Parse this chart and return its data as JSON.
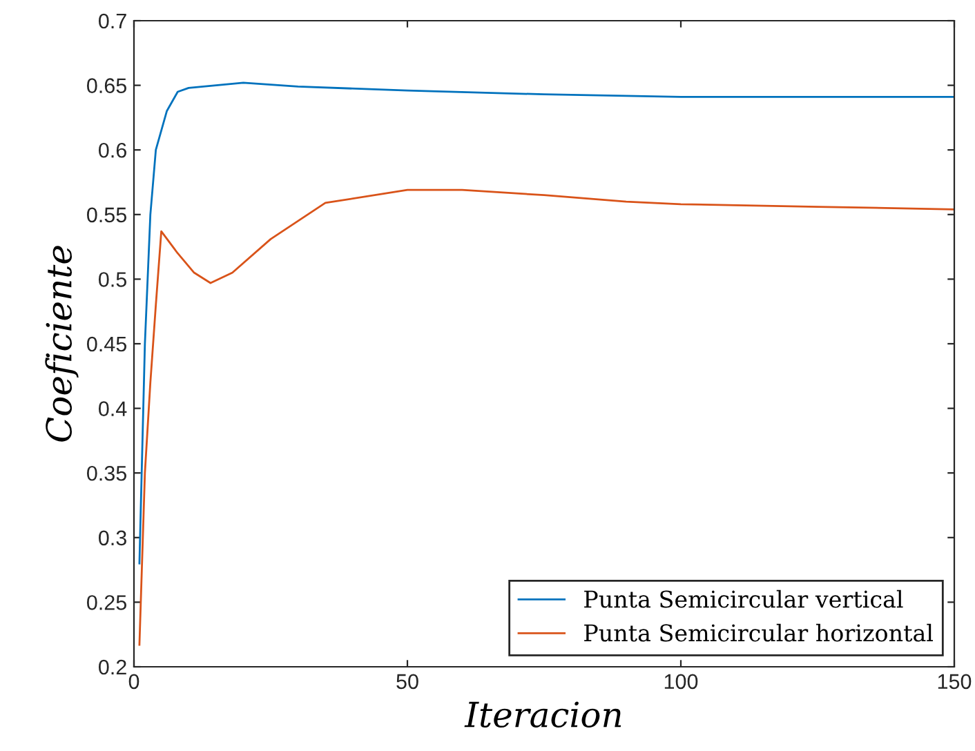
{
  "chart_data": {
    "type": "line",
    "xlabel": "Iteracion",
    "ylabel": "Coeficiente",
    "xlim": [
      0,
      150
    ],
    "xticks": [
      0,
      50,
      100,
      150
    ],
    "ylim": [
      0.2,
      0.7
    ],
    "yticks": [
      0.2,
      0.25,
      0.3,
      0.35,
      0.4,
      0.45,
      0.5,
      0.55,
      0.6,
      0.65,
      0.7
    ],
    "legend": "bottom right",
    "grid": false,
    "series": [
      {
        "name": "Punta Semicircular vertical",
        "color": "#0072bd",
        "x": [
          1,
          2,
          3,
          4,
          6,
          8,
          10,
          15,
          20,
          30,
          50,
          75,
          100,
          125,
          150
        ],
        "values": [
          0.28,
          0.45,
          0.55,
          0.6,
          0.63,
          0.645,
          0.648,
          0.65,
          0.652,
          0.649,
          0.646,
          0.643,
          0.641,
          0.641,
          0.641
        ]
      },
      {
        "name": "Punta Semicircular horizontal",
        "color": "#d95319",
        "x": [
          1,
          2,
          3,
          4,
          5,
          8,
          11,
          14,
          18,
          25,
          35,
          50,
          60,
          75,
          90,
          100,
          125,
          150
        ],
        "values": [
          0.217,
          0.35,
          0.42,
          0.48,
          0.537,
          0.52,
          0.505,
          0.497,
          0.505,
          0.531,
          0.559,
          0.569,
          0.569,
          0.565,
          0.56,
          0.558,
          0.556,
          0.554
        ]
      }
    ]
  }
}
